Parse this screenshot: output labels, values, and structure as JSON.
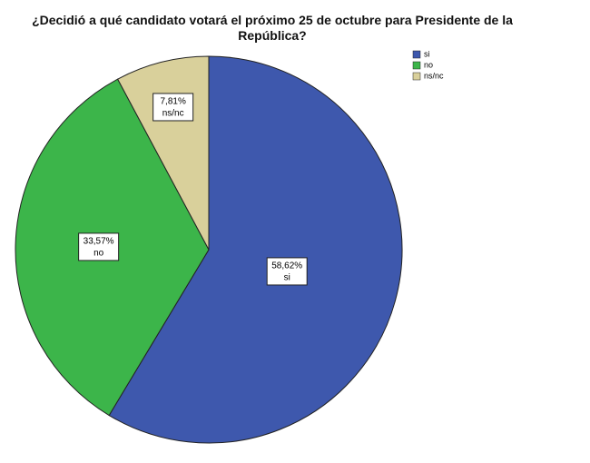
{
  "chart_data": {
    "type": "pie",
    "title": "¿Decidió a qué candidato votará el próximo 25 de octubre para Presidente de la República?",
    "categories": [
      "si",
      "no",
      "ns/nc"
    ],
    "values": [
      58.62,
      33.57,
      7.81
    ],
    "value_labels": [
      "58,62%",
      "33,57%",
      "7,81%"
    ],
    "colors": [
      "#3e58ad",
      "#3cb54a",
      "#d9d09b"
    ]
  }
}
